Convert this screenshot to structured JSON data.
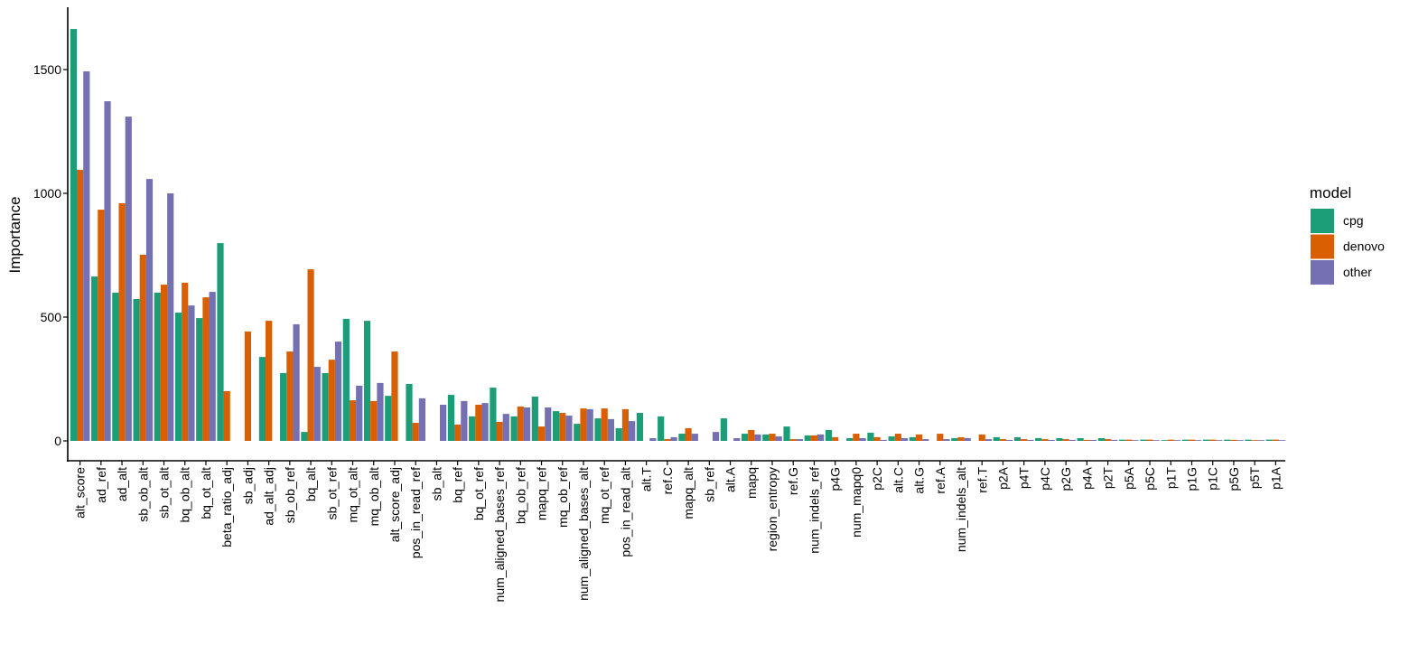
{
  "chart_data": {
    "type": "bar",
    "ylabel": "Importance",
    "xlabel": "",
    "ylim": [
      -80,
      1740
    ],
    "yticks": [
      0,
      500,
      1000,
      1500
    ],
    "grid": false,
    "legend": {
      "title": "model",
      "placement": "right"
    },
    "categories": [
      "alt_score",
      "ad_ref",
      "ad_alt",
      "sb_ob_alt",
      "sb_ot_alt",
      "bq_ob_alt",
      "bq_ot_alt",
      "beta_ratio_adj",
      "sb_adj",
      "ad_alt_adj",
      "sb_ob_ref",
      "bq_alt",
      "sb_ot_ref",
      "mq_ot_alt",
      "mq_ob_alt",
      "alt_score_adj",
      "pos_in_read_ref",
      "sb_alt",
      "bq_ref",
      "bq_ot_ref",
      "num_aligned_bases_ref",
      "bq_ob_ref",
      "mapq_ref",
      "mq_ob_ref",
      "num_aligned_bases_alt",
      "mq_ot_ref",
      "pos_in_read_alt",
      "alt.T",
      "ref.C",
      "mapq_alt",
      "sb_ref",
      "alt.A",
      "mapq",
      "region_entropy",
      "ref.G",
      "num_indels_ref",
      "p4G",
      "num_mapq0",
      "p2C",
      "alt.C",
      "alt.G",
      "ref.A",
      "num_indels_alt",
      "ref.T",
      "p2A",
      "p4T",
      "p4C",
      "p2G",
      "p4A",
      "p2T",
      "p5A",
      "p5C",
      "p1T",
      "p1G",
      "p1C",
      "p5G",
      "p5T",
      "p1A"
    ],
    "series": [
      {
        "name": "cpg",
        "color": "#1b9e77",
        "values": [
          1664,
          664,
          599,
          573,
          599,
          518,
          496,
          799,
          0,
          339,
          274,
          36,
          274,
          493,
          485,
          182,
          230,
          0,
          186,
          99,
          215,
          99,
          179,
          120,
          69,
          91,
          51,
          113,
          99,
          29,
          0,
          91,
          29,
          26,
          58,
          22,
          44,
          11,
          33,
          18,
          15,
          0,
          11,
          0,
          15,
          15,
          11,
          11,
          11,
          11,
          5,
          5,
          3,
          5,
          5,
          5,
          5,
          5
        ]
      },
      {
        "name": "denovo",
        "color": "#d95f02",
        "values": [
          1095,
          934,
          960,
          752,
          631,
          639,
          580,
          201,
          442,
          485,
          361,
          693,
          328,
          164,
          161,
          361,
          73,
          0,
          66,
          146,
          77,
          139,
          58,
          113,
          131,
          131,
          128,
          0,
          7,
          51,
          0,
          0,
          44,
          29,
          7,
          22,
          15,
          29,
          15,
          29,
          26,
          29,
          15,
          26,
          7,
          7,
          7,
          7,
          4,
          7,
          5,
          5,
          5,
          5,
          5,
          4,
          3,
          5
        ]
      },
      {
        "name": "other",
        "color": "#7570b3",
        "values": [
          1493,
          1372,
          1310,
          1058,
          1000,
          547,
          602,
          0,
          0,
          0,
          471,
          299,
          401,
          223,
          234,
          0,
          172,
          146,
          161,
          153,
          109,
          135,
          135,
          102,
          128,
          88,
          80,
          11,
          15,
          29,
          36,
          11,
          26,
          18,
          7,
          26,
          0,
          11,
          4,
          11,
          7,
          7,
          11,
          7,
          4,
          4,
          4,
          4,
          4,
          4,
          3,
          3,
          3,
          3,
          3,
          3,
          3,
          3
        ]
      }
    ]
  }
}
